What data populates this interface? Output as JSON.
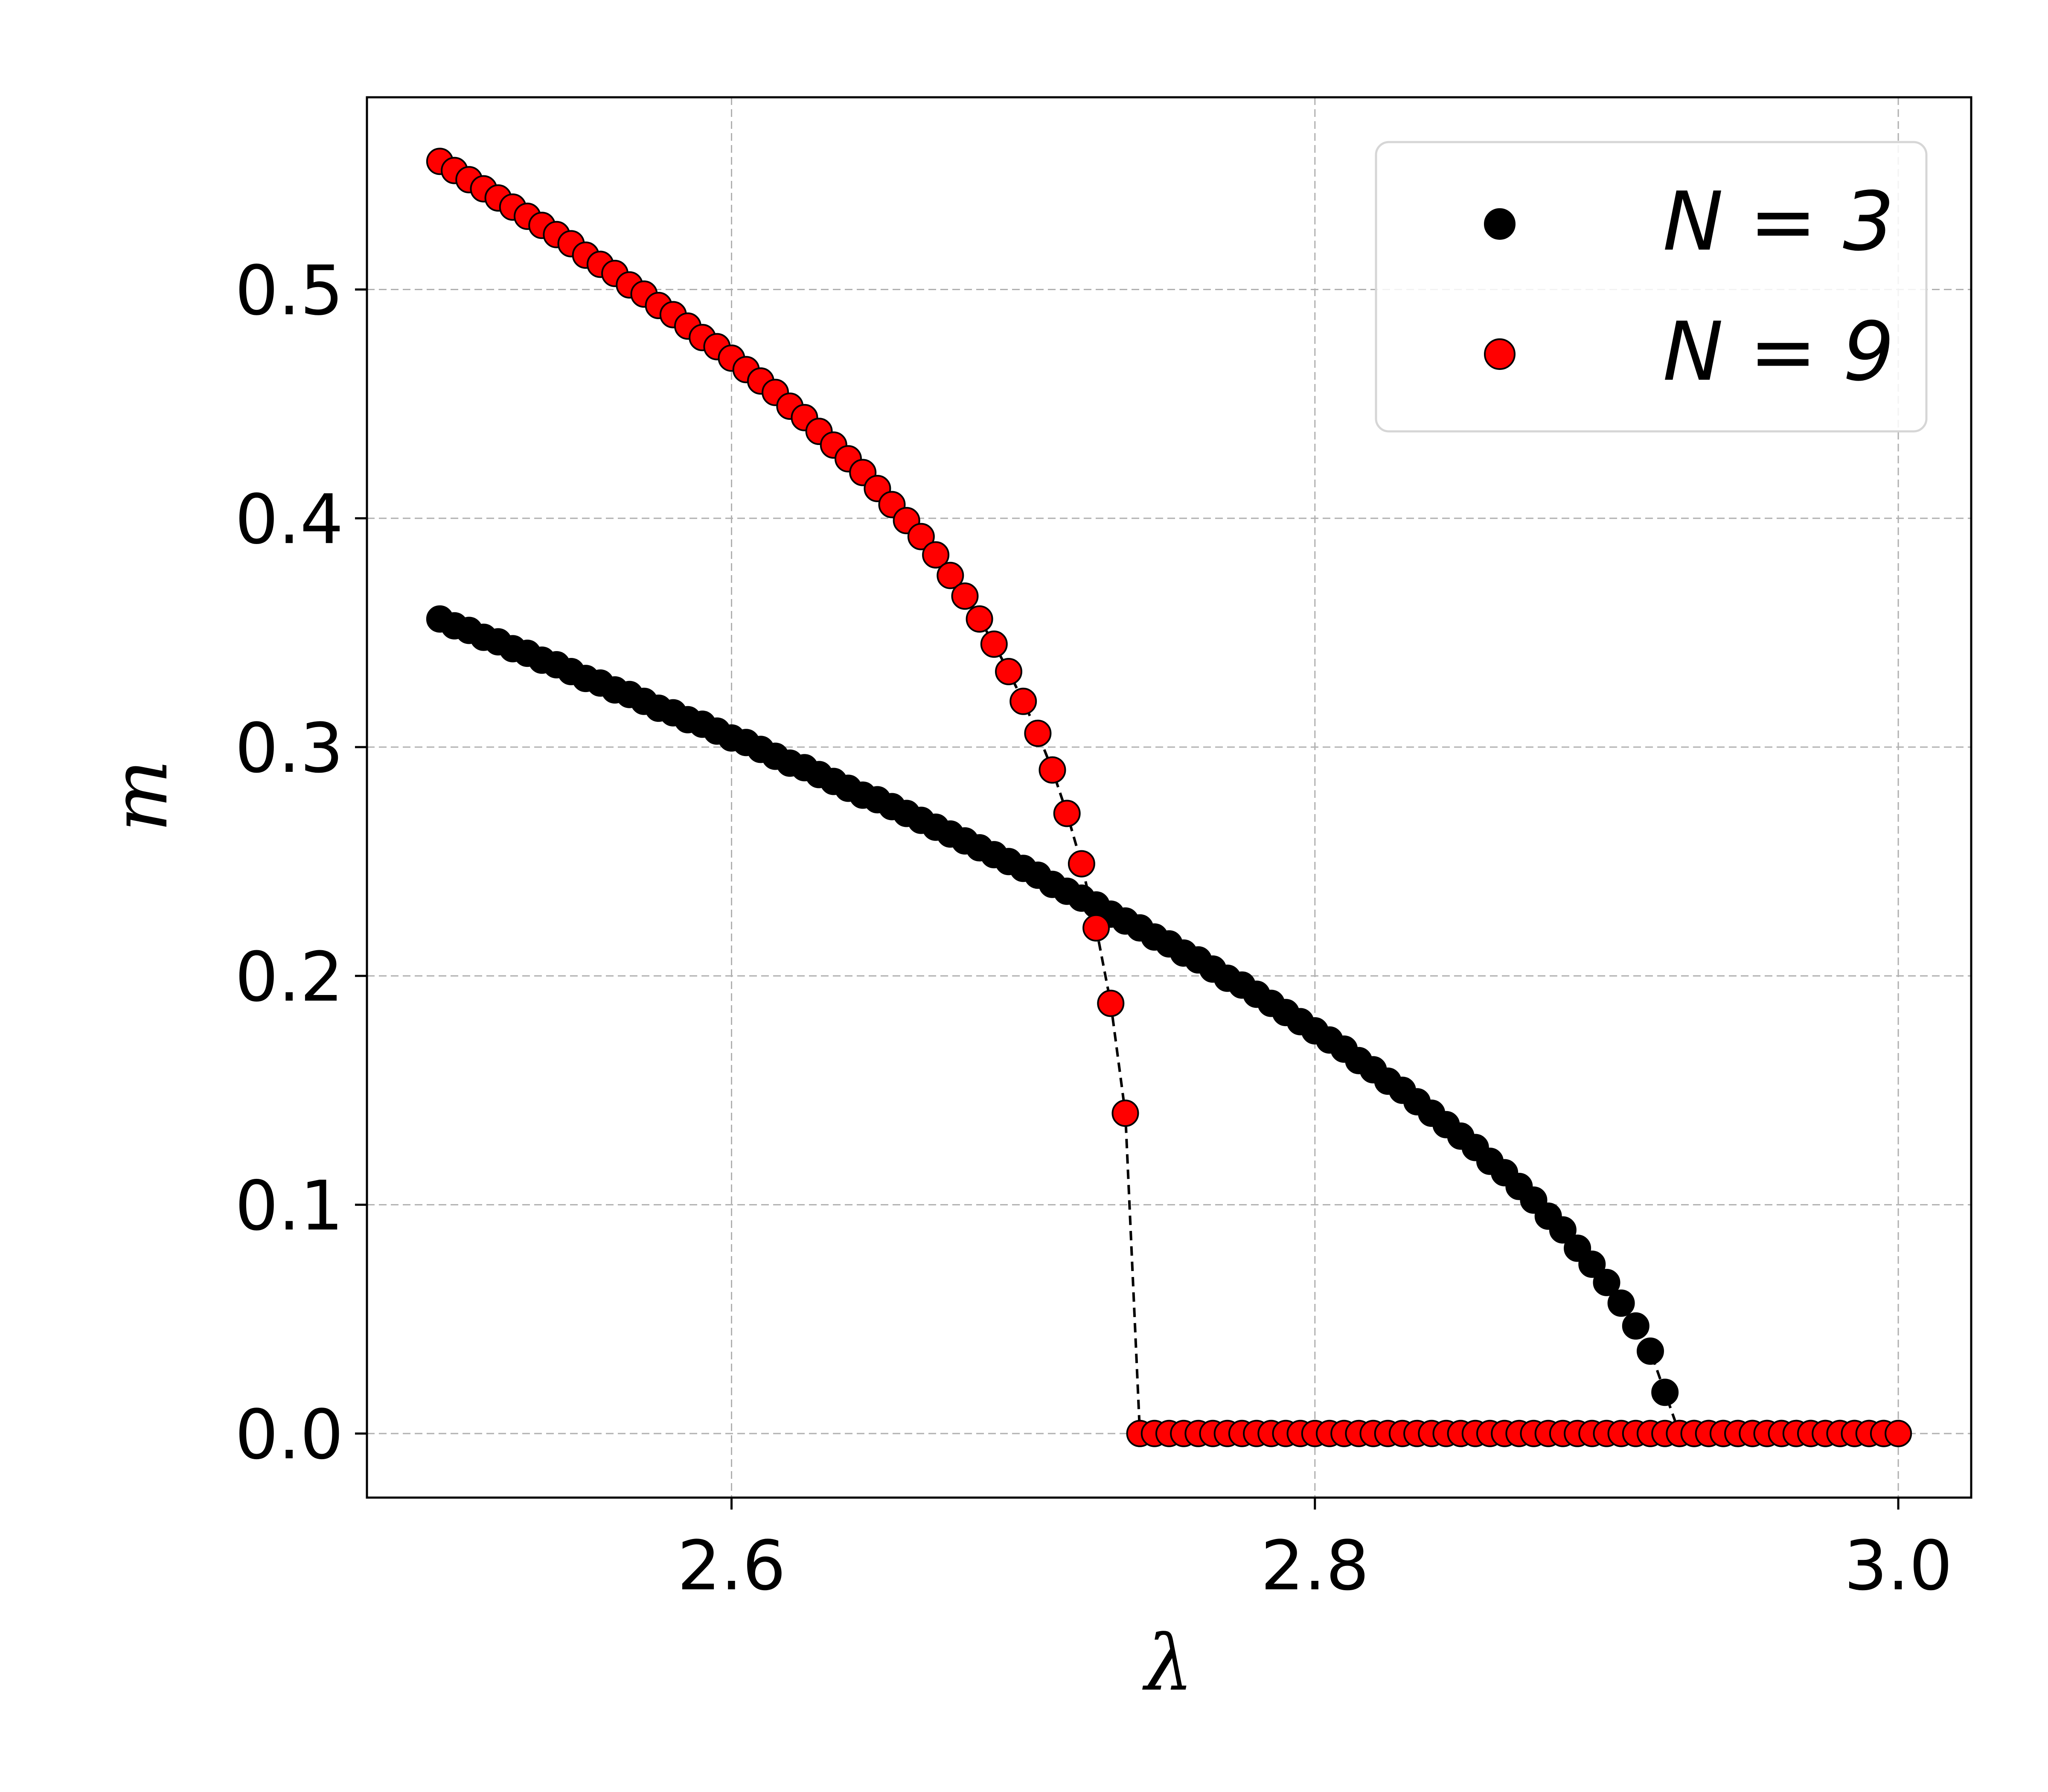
{
  "chart_data": {
    "type": "scatter",
    "xlabel": "λ",
    "ylabel": "m",
    "xlim": [
      2.475,
      3.025
    ],
    "ylim": [
      -0.028,
      0.584
    ],
    "xticks": [
      2.6,
      2.8,
      3.0
    ],
    "xtick_labels": [
      "2.6",
      "2.8",
      "3.0"
    ],
    "yticks": [
      0.0,
      0.1,
      0.2,
      0.3,
      0.4,
      0.5
    ],
    "ytick_labels": [
      "0.0",
      "0.1",
      "0.2",
      "0.3",
      "0.4",
      "0.5"
    ],
    "grid": true,
    "legend_position": "top-right",
    "series": [
      {
        "name": "N = 3",
        "legend_label": "N = 3",
        "color": "#000000",
        "marker_edge": "#000000",
        "line_style": "dashed",
        "x": [
          2.5,
          2.505,
          2.51,
          2.515,
          2.52,
          2.525,
          2.53,
          2.535,
          2.54,
          2.545,
          2.55,
          2.555,
          2.56,
          2.565,
          2.57,
          2.575,
          2.58,
          2.585,
          2.59,
          2.595,
          2.6,
          2.605,
          2.61,
          2.615,
          2.62,
          2.625,
          2.63,
          2.635,
          2.64,
          2.645,
          2.65,
          2.655,
          2.66,
          2.665,
          2.67,
          2.675,
          2.68,
          2.685,
          2.69,
          2.695,
          2.7,
          2.705,
          2.71,
          2.715,
          2.72,
          2.725,
          2.73,
          2.735,
          2.74,
          2.745,
          2.75,
          2.755,
          2.76,
          2.765,
          2.77,
          2.775,
          2.78,
          2.785,
          2.79,
          2.795,
          2.8,
          2.805,
          2.81,
          2.815,
          2.82,
          2.825,
          2.83,
          2.835,
          2.84,
          2.845,
          2.85,
          2.855,
          2.86,
          2.865,
          2.87,
          2.875,
          2.88,
          2.885,
          2.89,
          2.895,
          2.9,
          2.905,
          2.91,
          2.915,
          2.92,
          2.925,
          2.93,
          2.935,
          2.94,
          2.945,
          2.95,
          2.955,
          2.96,
          2.965,
          2.97,
          2.975,
          2.98,
          2.985,
          2.99,
          2.995,
          3.0
        ],
        "y": [
          0.356,
          0.353,
          0.351,
          0.348,
          0.346,
          0.343,
          0.341,
          0.338,
          0.336,
          0.333,
          0.33,
          0.328,
          0.325,
          0.323,
          0.32,
          0.317,
          0.315,
          0.312,
          0.31,
          0.307,
          0.304,
          0.302,
          0.299,
          0.296,
          0.293,
          0.291,
          0.288,
          0.285,
          0.282,
          0.279,
          0.277,
          0.274,
          0.271,
          0.268,
          0.265,
          0.262,
          0.259,
          0.256,
          0.253,
          0.25,
          0.247,
          0.244,
          0.24,
          0.237,
          0.234,
          0.231,
          0.227,
          0.224,
          0.221,
          0.217,
          0.214,
          0.21,
          0.207,
          0.203,
          0.199,
          0.196,
          0.192,
          0.188,
          0.184,
          0.18,
          0.176,
          0.172,
          0.168,
          0.163,
          0.159,
          0.154,
          0.15,
          0.145,
          0.14,
          0.135,
          0.13,
          0.125,
          0.119,
          0.114,
          0.108,
          0.102,
          0.095,
          0.089,
          0.081,
          0.074,
          0.066,
          0.057,
          0.047,
          0.036,
          0.018,
          0.0,
          0.0,
          0.0,
          0.0,
          0.0,
          0.0,
          0.0,
          0.0,
          0.0,
          0.0,
          0.0,
          0.0,
          0.0,
          0.0,
          0.0,
          0.0
        ]
      },
      {
        "name": "N = 9",
        "legend_label": "N = 9",
        "color": "#ff0000",
        "marker_edge": "#000000",
        "line_style": "dashed",
        "x": [
          2.5,
          2.505,
          2.51,
          2.515,
          2.52,
          2.525,
          2.53,
          2.535,
          2.54,
          2.545,
          2.55,
          2.555,
          2.56,
          2.565,
          2.57,
          2.575,
          2.58,
          2.585,
          2.59,
          2.595,
          2.6,
          2.605,
          2.61,
          2.615,
          2.62,
          2.625,
          2.63,
          2.635,
          2.64,
          2.645,
          2.65,
          2.655,
          2.66,
          2.665,
          2.67,
          2.675,
          2.68,
          2.685,
          2.69,
          2.695,
          2.7,
          2.705,
          2.71,
          2.715,
          2.72,
          2.725,
          2.73,
          2.735,
          2.74,
          2.745,
          2.75,
          2.755,
          2.76,
          2.765,
          2.77,
          2.775,
          2.78,
          2.785,
          2.79,
          2.795,
          2.8,
          2.805,
          2.81,
          2.815,
          2.82,
          2.825,
          2.83,
          2.835,
          2.84,
          2.845,
          2.85,
          2.855,
          2.86,
          2.865,
          2.87,
          2.875,
          2.88,
          2.885,
          2.89,
          2.895,
          2.9,
          2.905,
          2.91,
          2.915,
          2.92,
          2.925,
          2.93,
          2.935,
          2.94,
          2.945,
          2.95,
          2.955,
          2.96,
          2.965,
          2.97,
          2.975,
          2.98,
          2.985,
          2.99,
          2.995,
          3.0
        ],
        "y": [
          0.556,
          0.552,
          0.548,
          0.544,
          0.54,
          0.536,
          0.532,
          0.528,
          0.524,
          0.52,
          0.515,
          0.511,
          0.507,
          0.502,
          0.498,
          0.493,
          0.489,
          0.484,
          0.479,
          0.475,
          0.47,
          0.465,
          0.46,
          0.455,
          0.449,
          0.444,
          0.438,
          0.432,
          0.426,
          0.42,
          0.413,
          0.406,
          0.399,
          0.392,
          0.384,
          0.375,
          0.366,
          0.356,
          0.345,
          0.333,
          0.32,
          0.306,
          0.29,
          0.271,
          0.249,
          0.221,
          0.188,
          0.14,
          0.0,
          0.0,
          0.0,
          0.0,
          0.0,
          0.0,
          0.0,
          0.0,
          0.0,
          0.0,
          0.0,
          0.0,
          0.0,
          0.0,
          0.0,
          0.0,
          0.0,
          0.0,
          0.0,
          0.0,
          0.0,
          0.0,
          0.0,
          0.0,
          0.0,
          0.0,
          0.0,
          0.0,
          0.0,
          0.0,
          0.0,
          0.0,
          0.0,
          0.0,
          0.0,
          0.0,
          0.0,
          0.0,
          0.0,
          0.0,
          0.0,
          0.0,
          0.0,
          0.0,
          0.0,
          0.0,
          0.0,
          0.0,
          0.0,
          0.0,
          0.0,
          0.0,
          0.0
        ]
      }
    ]
  }
}
